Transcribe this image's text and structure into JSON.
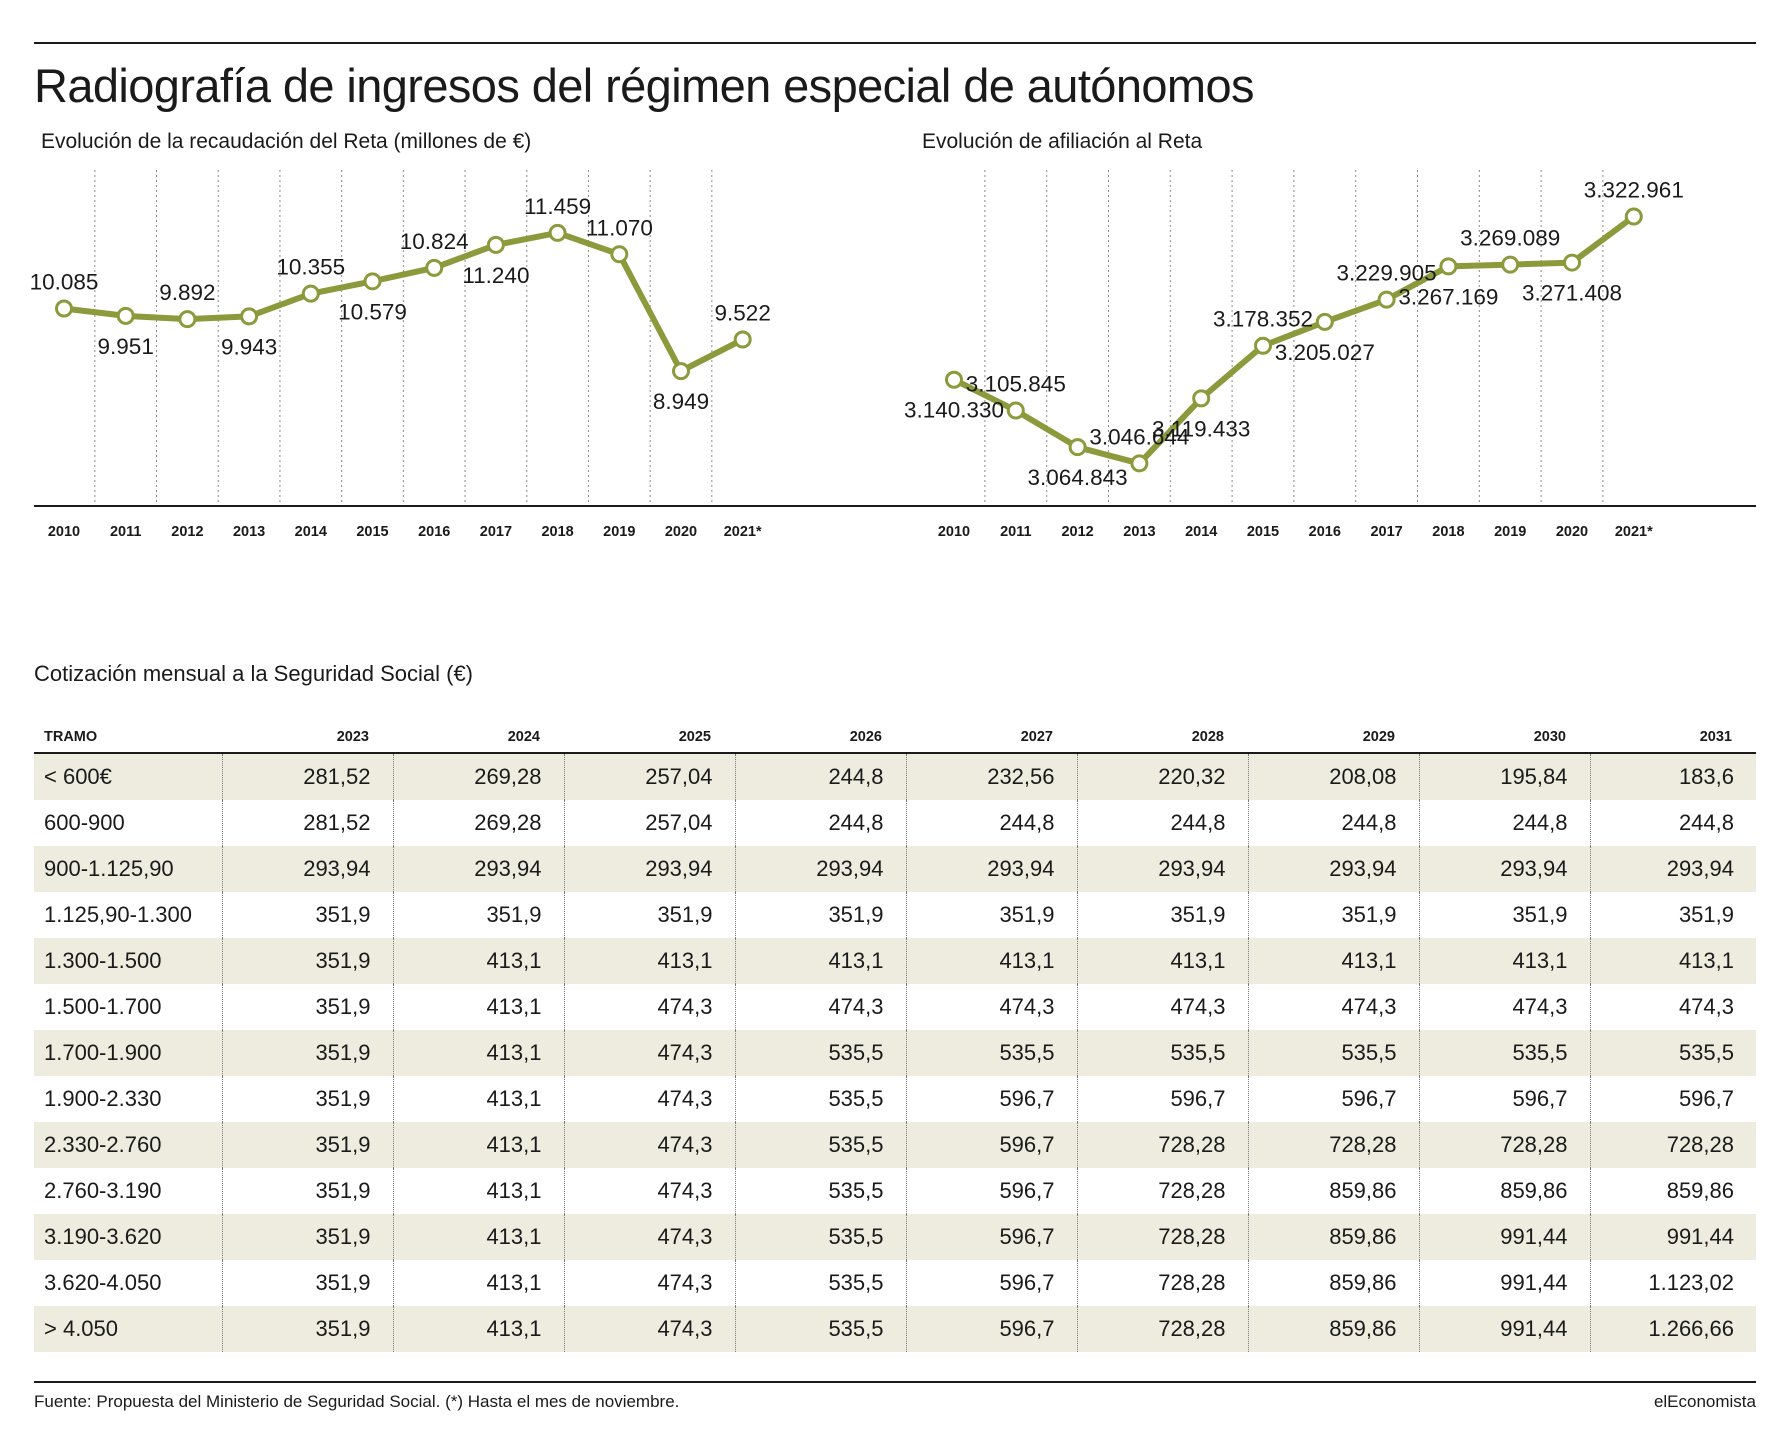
{
  "title": "Radiografía de ingresos del régimen especial de autónomos",
  "colors": {
    "line": "#8c9a3c",
    "marker_fill": "#ffffff",
    "row_shade": "#eeecde",
    "text": "#1a1a1a"
  },
  "chart_data": [
    {
      "type": "line",
      "title": "Evolución de la recaudación del Reta (millones de €)",
      "categories": [
        "2010",
        "2011",
        "2012",
        "2013",
        "2014",
        "2015",
        "2016",
        "2017",
        "2018",
        "2019",
        "2020",
        "2021*"
      ],
      "values": [
        10085,
        9951,
        9892,
        9943,
        10355,
        10579,
        10824,
        11240,
        11459,
        11070,
        8949,
        9522
      ],
      "labels": [
        "10.085",
        "9.951",
        "9.892",
        "9.943",
        "10.355",
        "10.579",
        "10.824",
        "11.240",
        "11.459",
        "11.070",
        "8.949",
        "9.522"
      ],
      "label_positions": [
        "above",
        "below",
        "above",
        "below",
        "above",
        "below",
        "above",
        "below",
        "above",
        "above",
        "below",
        "above"
      ],
      "ylim": [
        6500,
        12600
      ],
      "grid": "vertical-dotted",
      "legend": "none"
    },
    {
      "type": "line",
      "title": "Evolución de afiliación al Reta",
      "categories": [
        "2010",
        "2011",
        "2012",
        "2013",
        "2014",
        "2015",
        "2016",
        "2017",
        "2018",
        "2019",
        "2020",
        "2021*"
      ],
      "values": [
        3140330,
        3105845,
        3064843,
        3046644,
        3119433,
        3178352,
        3205027,
        3229905,
        3267169,
        3269089,
        3271408,
        3322961
      ],
      "labels": [
        "3.140.330",
        "3.105.845",
        "3.064.843",
        "3.046.644",
        "3.119.433",
        "3.178.352",
        "3.205.027",
        "3.229.905",
        "3.267.169",
        "3.269.089",
        "3.271.408",
        "3.322.961"
      ],
      "label_positions": [
        "below",
        "above",
        "below",
        "above",
        "below",
        "above",
        "below",
        "above",
        "below",
        "above",
        "below",
        "above"
      ],
      "ylim": [
        2999000,
        3375000
      ],
      "grid": "vertical-dotted",
      "legend": "none"
    },
    {
      "type": "table",
      "title": "Cotización mensual a la Seguridad Social (€)",
      "columns": [
        "TRAMO",
        "2023",
        "2024",
        "2025",
        "2026",
        "2027",
        "2028",
        "2029",
        "2030",
        "2031"
      ],
      "rows": [
        [
          "< 600€",
          "281,52",
          "269,28",
          "257,04",
          "244,8",
          "232,56",
          "220,32",
          "208,08",
          "195,84",
          "183,6"
        ],
        [
          "600-900",
          "281,52",
          "269,28",
          "257,04",
          "244,8",
          "244,8",
          "244,8",
          "244,8",
          "244,8",
          "244,8"
        ],
        [
          "900-1.125,90",
          "293,94",
          "293,94",
          "293,94",
          "293,94",
          "293,94",
          "293,94",
          "293,94",
          "293,94",
          "293,94"
        ],
        [
          "1.125,90-1.300",
          "351,9",
          "351,9",
          "351,9",
          "351,9",
          "351,9",
          "351,9",
          "351,9",
          "351,9",
          "351,9"
        ],
        [
          "1.300-1.500",
          "351,9",
          "413,1",
          "413,1",
          "413,1",
          "413,1",
          "413,1",
          "413,1",
          "413,1",
          "413,1"
        ],
        [
          "1.500-1.700",
          "351,9",
          "413,1",
          "474,3",
          "474,3",
          "474,3",
          "474,3",
          "474,3",
          "474,3",
          "474,3"
        ],
        [
          "1.700-1.900",
          "351,9",
          "413,1",
          "474,3",
          "535,5",
          "535,5",
          "535,5",
          "535,5",
          "535,5",
          "535,5"
        ],
        [
          "1.900-2.330",
          "351,9",
          "413,1",
          "474,3",
          "535,5",
          "596,7",
          "596,7",
          "596,7",
          "596,7",
          "596,7"
        ],
        [
          "2.330-2.760",
          "351,9",
          "413,1",
          "474,3",
          "535,5",
          "596,7",
          "728,28",
          "728,28",
          "728,28",
          "728,28"
        ],
        [
          "2.760-3.190",
          "351,9",
          "413,1",
          "474,3",
          "535,5",
          "596,7",
          "728,28",
          "859,86",
          "859,86",
          "859,86"
        ],
        [
          "3.190-3.620",
          "351,9",
          "413,1",
          "474,3",
          "535,5",
          "596,7",
          "728,28",
          "859,86",
          "991,44",
          "991,44"
        ],
        [
          "3.620-4.050",
          "351,9",
          "413,1",
          "474,3",
          "535,5",
          "596,7",
          "728,28",
          "859,86",
          "991,44",
          "1.123,02"
        ],
        [
          "> 4.050",
          "351,9",
          "413,1",
          "474,3",
          "535,5",
          "596,7",
          "728,28",
          "859,86",
          "991,44",
          "1.266,66"
        ]
      ]
    }
  ],
  "footer": {
    "source": "Fuente: Propuesta del Ministerio de Seguridad Social. (*) Hasta el mes de noviembre.",
    "brand": "elEconomista"
  }
}
